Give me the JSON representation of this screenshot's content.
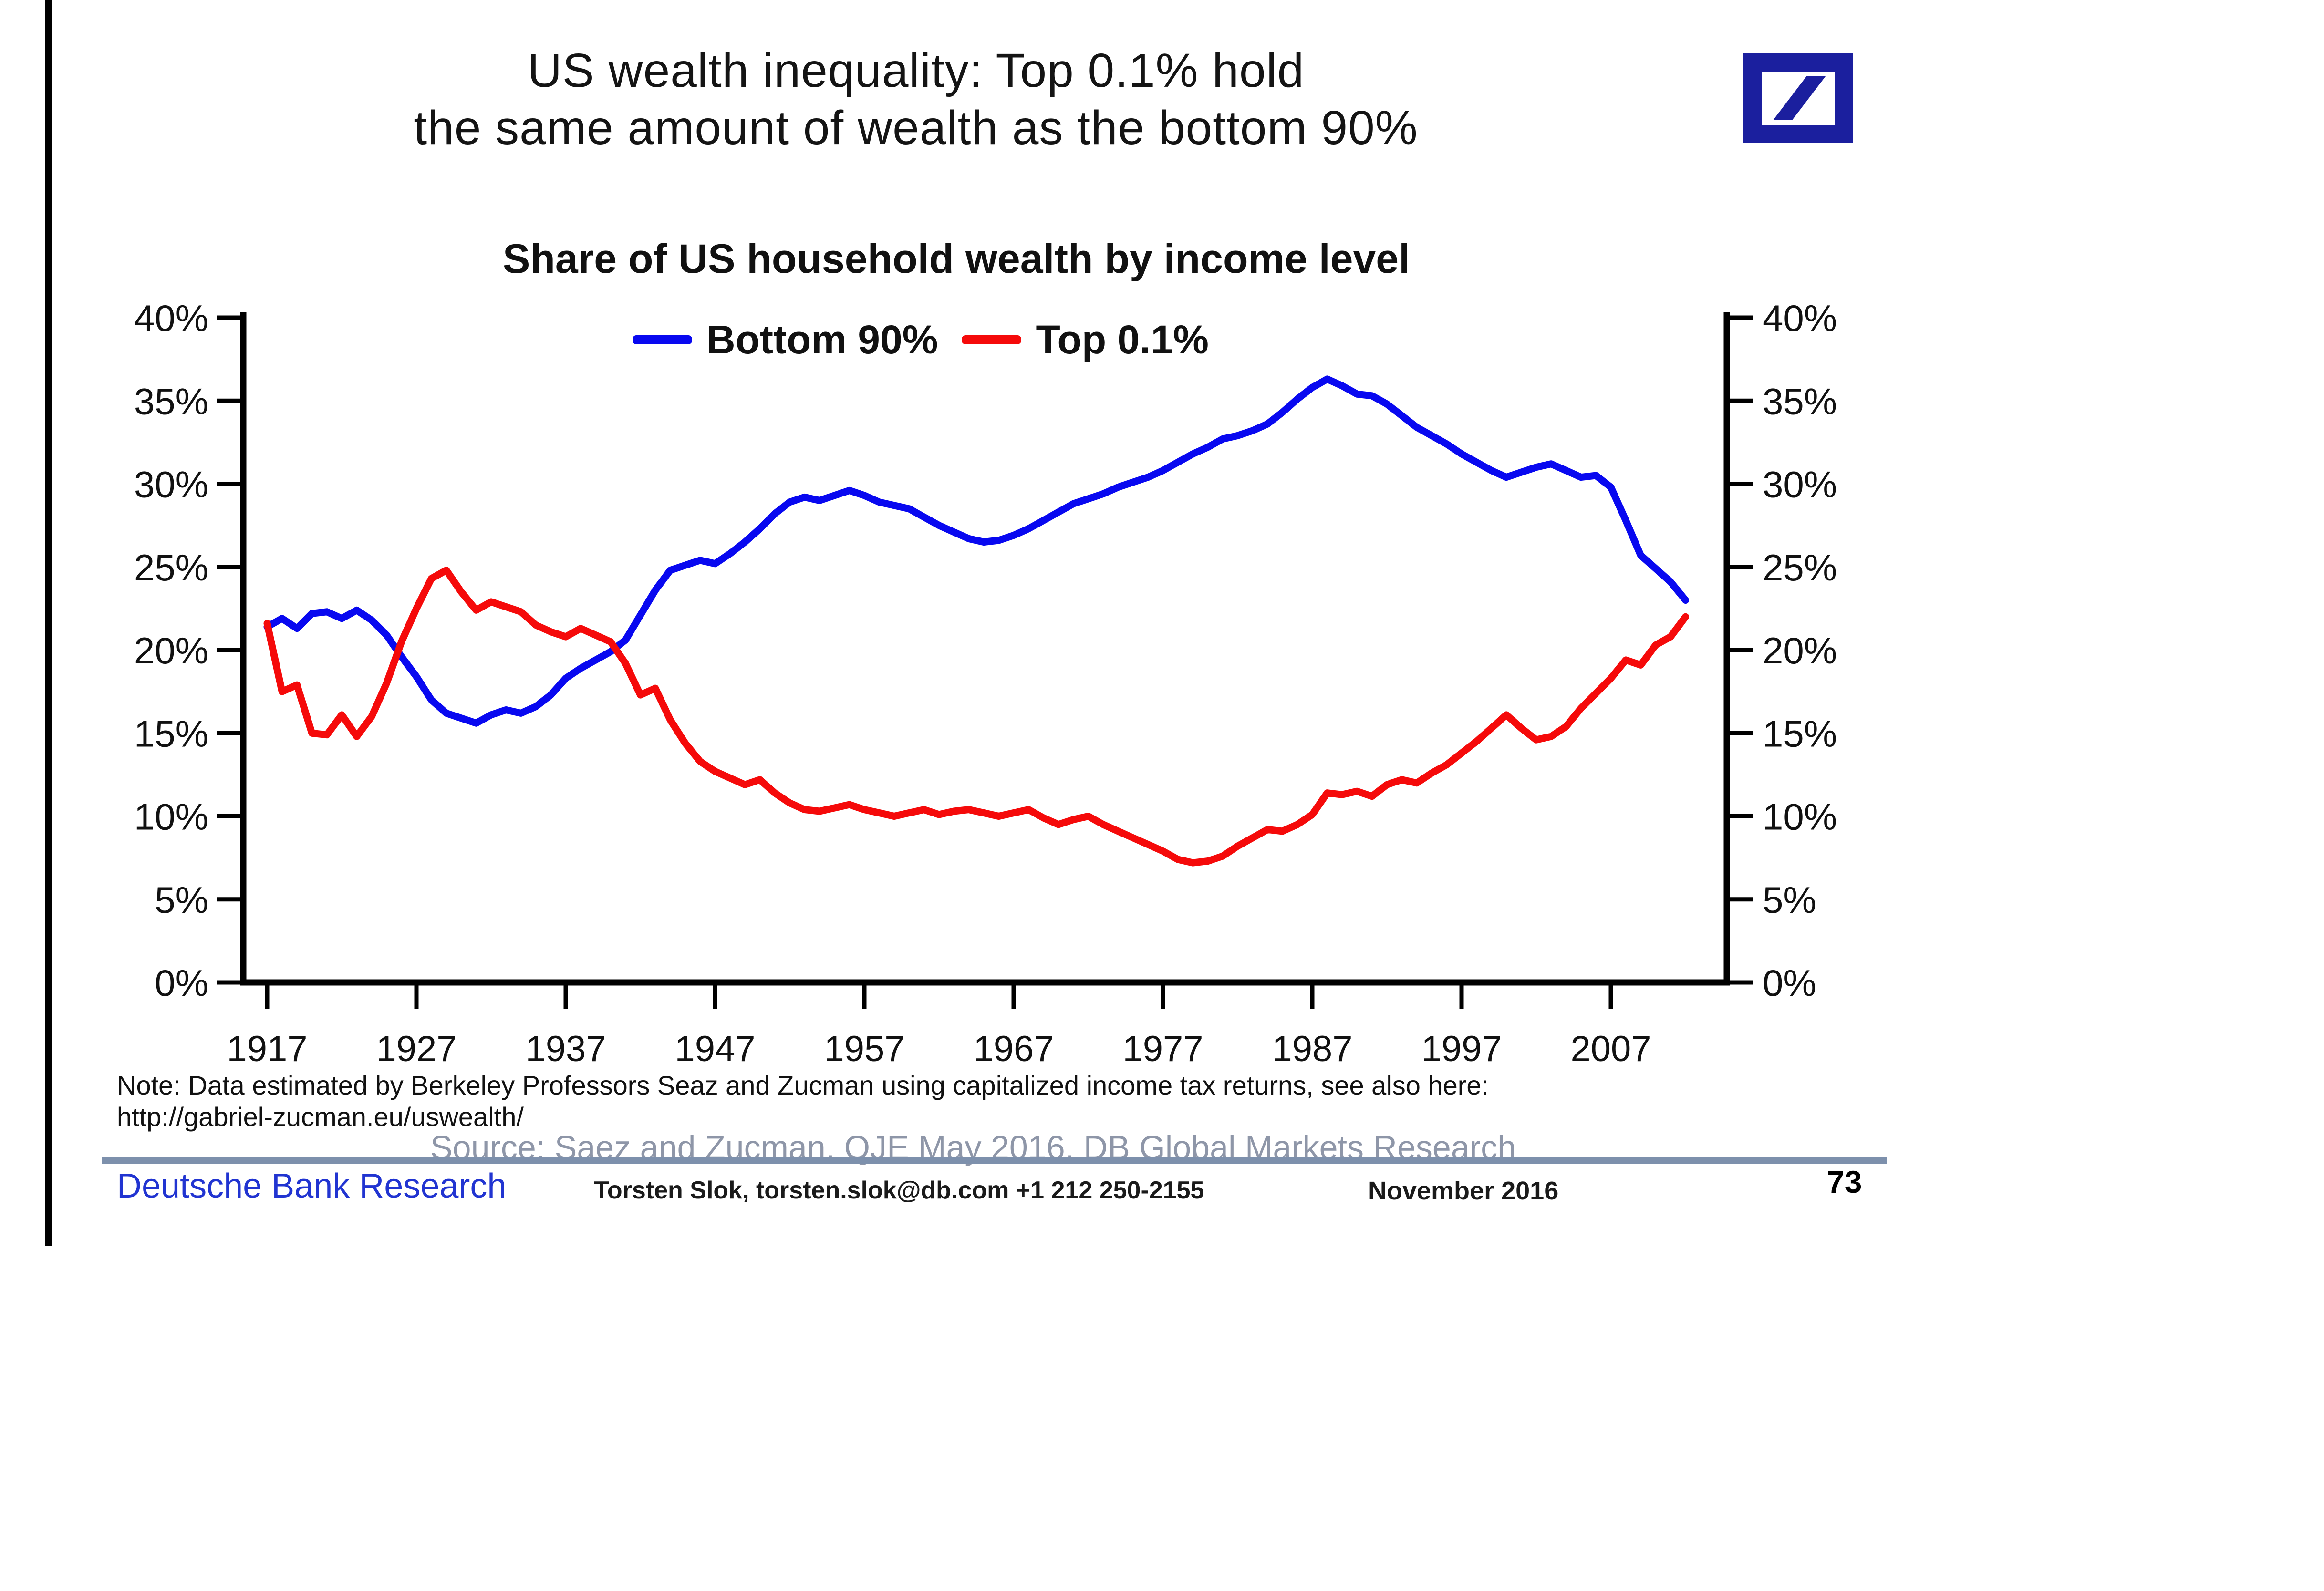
{
  "page": {
    "title": "US wealth inequality: Top 0.1% hold\nthe same amount of wealth as the bottom 90%"
  },
  "logo": {
    "name": "Deutsche Bank logo",
    "color": "#1b1f9e"
  },
  "chart_data": {
    "type": "line",
    "title": "Share of US household wealth by income level",
    "xlabel": "",
    "ylabel": "",
    "ylim": [
      0,
      40
    ],
    "yticks": [
      0,
      5,
      10,
      15,
      20,
      25,
      30,
      35,
      40
    ],
    "ytick_suffix": "%",
    "xticks": [
      1917,
      1927,
      1937,
      1947,
      1957,
      1967,
      1977,
      1987,
      1997,
      2007
    ],
    "grid": false,
    "legend_position": "top-center",
    "dual_y_axis": true,
    "axis_color": "#000000",
    "x": [
      1917,
      1918,
      1919,
      1920,
      1921,
      1922,
      1923,
      1924,
      1925,
      1926,
      1927,
      1928,
      1929,
      1930,
      1931,
      1932,
      1933,
      1934,
      1935,
      1936,
      1937,
      1938,
      1939,
      1940,
      1941,
      1942,
      1943,
      1944,
      1945,
      1946,
      1947,
      1948,
      1949,
      1950,
      1951,
      1952,
      1953,
      1954,
      1955,
      1956,
      1957,
      1958,
      1959,
      1960,
      1961,
      1962,
      1963,
      1964,
      1965,
      1966,
      1967,
      1968,
      1969,
      1970,
      1971,
      1972,
      1973,
      1974,
      1975,
      1976,
      1977,
      1978,
      1979,
      1980,
      1981,
      1982,
      1983,
      1984,
      1985,
      1986,
      1987,
      1988,
      1989,
      1990,
      1991,
      1992,
      1993,
      1994,
      1995,
      1996,
      1997,
      1998,
      1999,
      2000,
      2001,
      2002,
      2003,
      2004,
      2005,
      2006,
      2007,
      2008,
      2009,
      2010,
      2011,
      2012
    ],
    "series": [
      {
        "name": "Bottom 90%",
        "color": "#0808f0",
        "values": [
          21.4,
          21.9,
          21.3,
          22.2,
          22.3,
          21.9,
          22.4,
          21.8,
          20.9,
          19.6,
          18.4,
          17.0,
          16.2,
          15.9,
          15.6,
          16.1,
          16.4,
          16.2,
          16.6,
          17.3,
          18.3,
          18.9,
          19.4,
          19.9,
          20.6,
          22.1,
          23.6,
          24.8,
          25.1,
          25.4,
          25.2,
          25.8,
          26.5,
          27.3,
          28.2,
          28.9,
          29.2,
          29.0,
          29.3,
          29.6,
          29.3,
          28.9,
          28.7,
          28.5,
          28.0,
          27.5,
          27.1,
          26.7,
          26.5,
          26.6,
          26.9,
          27.3,
          27.8,
          28.3,
          28.8,
          29.1,
          29.4,
          29.8,
          30.1,
          30.4,
          30.8,
          31.3,
          31.8,
          32.2,
          32.7,
          32.9,
          33.2,
          33.6,
          34.3,
          35.1,
          35.8,
          36.3,
          35.9,
          35.4,
          35.3,
          34.8,
          34.1,
          33.4,
          32.9,
          32.4,
          31.8,
          31.3,
          30.8,
          30.4,
          30.7,
          31.0,
          31.2,
          30.8,
          30.4,
          30.5,
          29.8,
          27.8,
          25.7,
          24.9,
          24.1,
          23.0
        ]
      },
      {
        "name": "Top 0.1%",
        "color": "#f50a0a",
        "values": [
          21.6,
          17.5,
          17.9,
          15.0,
          14.9,
          16.1,
          14.8,
          16.0,
          18.0,
          20.5,
          22.5,
          24.3,
          24.8,
          23.5,
          22.4,
          22.9,
          22.6,
          22.3,
          21.5,
          21.1,
          20.8,
          21.3,
          20.9,
          20.5,
          19.2,
          17.3,
          17.7,
          15.8,
          14.4,
          13.3,
          12.7,
          12.3,
          11.9,
          12.2,
          11.4,
          10.8,
          10.4,
          10.3,
          10.5,
          10.7,
          10.4,
          10.2,
          10.0,
          10.2,
          10.4,
          10.1,
          10.3,
          10.4,
          10.2,
          10.0,
          10.2,
          10.4,
          9.9,
          9.5,
          9.8,
          10.0,
          9.5,
          9.1,
          8.7,
          8.3,
          7.9,
          7.4,
          7.2,
          7.3,
          7.6,
          8.2,
          8.7,
          9.2,
          9.1,
          9.5,
          10.1,
          11.4,
          11.3,
          11.5,
          11.2,
          11.9,
          12.2,
          12.0,
          12.6,
          13.1,
          13.8,
          14.5,
          15.3,
          16.1,
          15.3,
          14.6,
          14.8,
          15.4,
          16.5,
          17.4,
          18.3,
          19.4,
          19.1,
          20.3,
          20.8,
          22.0
        ]
      }
    ]
  },
  "note": {
    "text": "Note: Data estimated by Berkeley Professors Seaz and Zucman using capitalized income tax returns, see also here:\nhttp://gabriel-zucman.eu/uswealth/"
  },
  "source": "Source: Saez and Zucman, QJE May 2016, DB Global Markets Research",
  "footer": {
    "brand": "Deutsche Bank Research",
    "contact": "Torsten Slok, torsten.slok@db.com  +1 212 250-2155",
    "date": "November 2016",
    "page_number": "73"
  }
}
